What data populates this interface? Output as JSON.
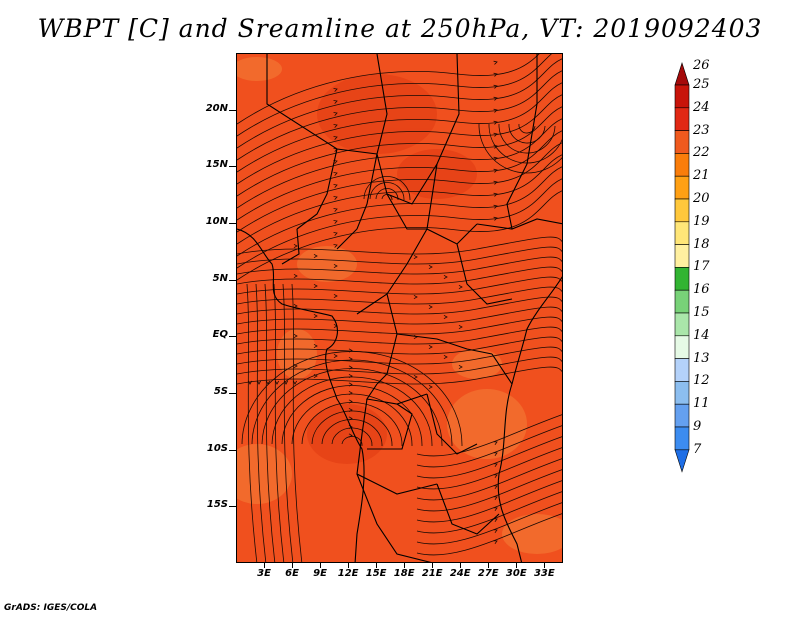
{
  "title": "WBPT [C] and Sreamline at 250hPa, VT: 2019092403",
  "credit": "GrADS: IGES/COLA",
  "map": {
    "lon_range": [
      0,
      35
    ],
    "lat_range": [
      -20,
      25
    ],
    "fill_color": "#f0501e",
    "latitude_labels": [
      "20N",
      "15N",
      "10N",
      "5N",
      "EQ",
      "5S",
      "10S",
      "15S"
    ],
    "latitude_values": [
      20,
      15,
      10,
      5,
      0,
      -5,
      -10,
      -15
    ],
    "longitude_labels": [
      "3E",
      "6E",
      "9E",
      "12E",
      "15E",
      "18E",
      "21E",
      "24E",
      "27E",
      "30E",
      "33E"
    ],
    "longitude_values": [
      3,
      6,
      9,
      12,
      15,
      18,
      21,
      24,
      27,
      30,
      33
    ],
    "features": [
      "country-borders",
      "coastline",
      "streamlines"
    ]
  },
  "colorbar": {
    "levels": [
      "26",
      "25",
      "24",
      "23",
      "22",
      "21",
      "20",
      "19",
      "18",
      "17",
      "16",
      "15",
      "14",
      "13",
      "12",
      "11",
      "9",
      "7"
    ],
    "colors": [
      "#a50a0a",
      "#c8140a",
      "#e12814",
      "#f05a1e",
      "#fa7d0a",
      "#ffa014",
      "#ffc83c",
      "#ffe678",
      "#fff0a0",
      "#32b432",
      "#78d278",
      "#aae6aa",
      "#e6fae6",
      "#b4d2fa",
      "#8cbef0",
      "#64a0f0",
      "#3c8cf0",
      "#1e6ee6"
    ]
  }
}
